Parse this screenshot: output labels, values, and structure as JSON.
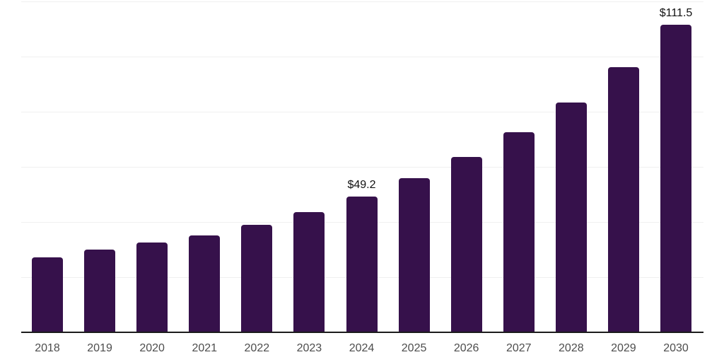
{
  "chart_data": {
    "type": "bar",
    "title": "",
    "xlabel": "",
    "ylabel": "",
    "categories": [
      "2018",
      "2019",
      "2020",
      "2021",
      "2022",
      "2023",
      "2024",
      "2025",
      "2026",
      "2027",
      "2028",
      "2029",
      "2030"
    ],
    "values": [
      27.2,
      30.0,
      32.6,
      35.1,
      39.0,
      43.6,
      49.2,
      55.9,
      63.5,
      72.6,
      83.3,
      96.2,
      111.5
    ],
    "data_labels": [
      {
        "category": "2024",
        "text": "$49.2"
      },
      {
        "category": "2030",
        "text": "$111.5"
      }
    ],
    "ylim": [
      0,
      120
    ],
    "gridline_values": [
      20,
      40,
      60,
      80,
      100,
      120
    ],
    "grid": true,
    "legend_position": "none",
    "y_axis_labels_visible": false,
    "colors": {
      "bar": "#36114B",
      "gridline": "#F0F0F0",
      "axis_line": "#1C1C1C",
      "tick_label": "#4D4D4D",
      "data_label": "#111111",
      "background": "#FFFFFF"
    }
  }
}
